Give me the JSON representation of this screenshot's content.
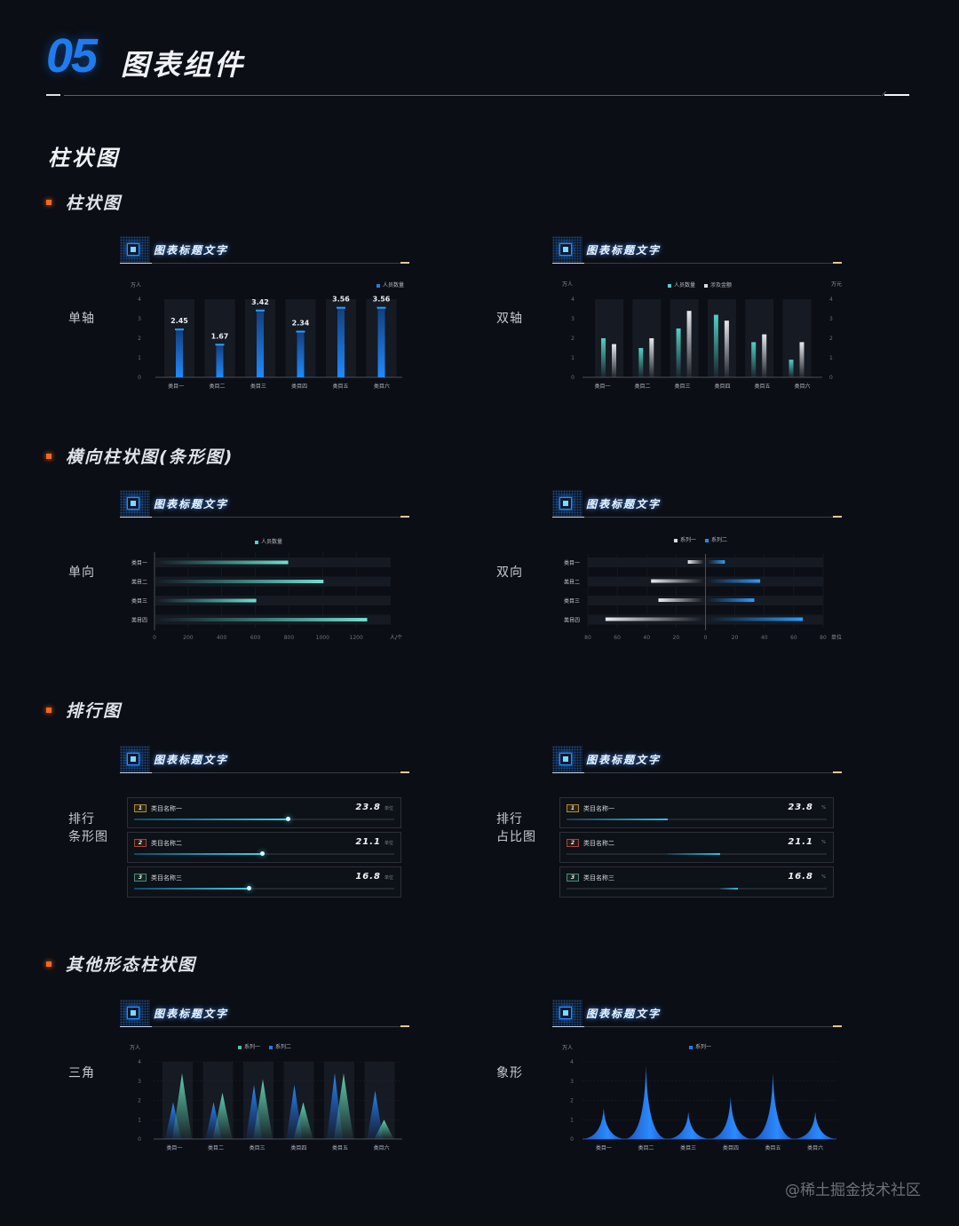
{
  "header": {
    "number": "05",
    "title": "图表组件"
  },
  "section": {
    "title": "柱状图"
  },
  "subsections": [
    {
      "title": "柱状图"
    },
    {
      "title": "横向柱状图(条形图)"
    },
    {
      "title": "排行图"
    },
    {
      "title": "其他形态柱状图"
    }
  ],
  "row_labels": {
    "single_axis": "单轴",
    "dual_axis": "双轴",
    "one_way": "单向",
    "two_way": "双向",
    "rank_bar_1": "排行",
    "rank_bar_2": "条形图",
    "rank_pct_1": "排行",
    "rank_pct_2": "占比图",
    "triangle": "三角",
    "pictorial": "象形"
  },
  "card_title": "图表标题文字",
  "colors": {
    "accent_blue": "#1f7cf0",
    "teal": "#4fd1c5",
    "orange_dot": "#f2681c",
    "gold": "#e8c98a",
    "bg": "#0b0e15"
  },
  "chart_data": [
    {
      "id": "single-axis",
      "type": "bar",
      "ylabel": "万人",
      "legend": [
        "人员数量"
      ],
      "categories": [
        "类目一",
        "类目二",
        "类目三",
        "类目四",
        "类目五",
        "类目六"
      ],
      "values": [
        2.45,
        1.67,
        3.42,
        2.34,
        3.56,
        3.56
      ],
      "value_labels": [
        "2.45",
        "1.67",
        "3.42",
        "2.34",
        "3.56",
        "3.56"
      ],
      "yticks": [
        "4",
        "3",
        "2",
        "1",
        "0"
      ],
      "ylim": [
        0,
        4
      ]
    },
    {
      "id": "dual-axis",
      "type": "bar",
      "ylabel_left": "万人",
      "ylabel_right": "万元",
      "legend": [
        "人员数量",
        "涉及金额"
      ],
      "categories": [
        "类目一",
        "类目二",
        "类目三",
        "类目四",
        "类目五",
        "类目六"
      ],
      "series": [
        {
          "name": "人员数量",
          "values": [
            2.0,
            1.5,
            2.5,
            3.2,
            1.8,
            0.9
          ]
        },
        {
          "name": "涉及金额",
          "values": [
            1.7,
            2.0,
            3.4,
            2.9,
            2.2,
            1.8
          ]
        }
      ],
      "yticks": [
        "4",
        "3",
        "2",
        "1",
        "0"
      ],
      "ylim": [
        0,
        4
      ]
    },
    {
      "id": "one-way",
      "type": "bar",
      "orientation": "horizontal",
      "legend": [
        "人员数量"
      ],
      "categories": [
        "类目一",
        "类目二",
        "类目三",
        "类目四"
      ],
      "values": [
        790,
        1000,
        600,
        1260
      ],
      "xticks": [
        "0",
        "200",
        "400",
        "600",
        "800",
        "1000",
        "1200"
      ],
      "xunit": "人/个",
      "xlim": [
        0,
        1400
      ]
    },
    {
      "id": "two-way",
      "type": "bar",
      "orientation": "horizontal-diverging",
      "legend": [
        "系列一",
        "系列二"
      ],
      "categories": [
        "类目一",
        "类目二",
        "类目三",
        "类目四"
      ],
      "series": [
        {
          "name": "系列一",
          "values": [
            -12,
            -37,
            -32,
            -68
          ]
        },
        {
          "name": "系列二",
          "values": [
            12,
            36,
            32,
            65
          ]
        }
      ],
      "xticks": [
        "80",
        "60",
        "40",
        "20",
        "0",
        "20",
        "40",
        "60",
        "80"
      ],
      "xunit": "单位",
      "xlim": [
        -80,
        80
      ]
    },
    {
      "id": "rank-bar",
      "type": "bar",
      "items": [
        {
          "rank": "1",
          "name": "类目名称一",
          "value": "23.8",
          "unit": "单位",
          "pct": 59
        },
        {
          "rank": "2",
          "name": "类目名称二",
          "value": "21.1",
          "unit": "单位",
          "pct": 49
        },
        {
          "rank": "3",
          "name": "类目名称三",
          "value": "16.8",
          "unit": "单位",
          "pct": 44
        }
      ]
    },
    {
      "id": "rank-share",
      "type": "bar",
      "items": [
        {
          "rank": "1",
          "name": "类目名称一",
          "value": "23.8",
          "unit": "%",
          "start": 0,
          "pct": 39
        },
        {
          "rank": "2",
          "name": "类目名称二",
          "value": "21.1",
          "unit": "%",
          "start": 39,
          "pct": 20
        },
        {
          "rank": "3",
          "name": "类目名称三",
          "value": "16.8",
          "unit": "%",
          "start": 59,
          "pct": 7
        }
      ]
    },
    {
      "id": "triangle",
      "type": "bar",
      "ylabel": "万人",
      "legend": [
        "系列一",
        "系列二"
      ],
      "categories": [
        "类目一",
        "类目二",
        "类目三",
        "类目四",
        "类目五",
        "类目六"
      ],
      "series": [
        {
          "name": "系列一",
          "values": [
            3.4,
            2.4,
            3.1,
            1.9,
            3.4,
            1.0
          ]
        },
        {
          "name": "系列二",
          "values": [
            1.9,
            1.9,
            2.8,
            2.8,
            3.4,
            2.5
          ]
        }
      ],
      "yticks": [
        "4",
        "3",
        "2",
        "1",
        "0"
      ],
      "ylim": [
        0,
        4
      ]
    },
    {
      "id": "pictorial",
      "type": "area",
      "ylabel": "万人",
      "legend": [
        "系列一"
      ],
      "categories": [
        "类目一",
        "类目二",
        "类目三",
        "类目四",
        "类目五",
        "类目六"
      ],
      "values": [
        1.6,
        3.8,
        1.4,
        2.2,
        3.4,
        1.4
      ],
      "yticks": [
        "4",
        "3",
        "2",
        "1",
        "0"
      ],
      "ylim": [
        0,
        4
      ]
    }
  ],
  "watermark": "@稀土掘金技术社区"
}
